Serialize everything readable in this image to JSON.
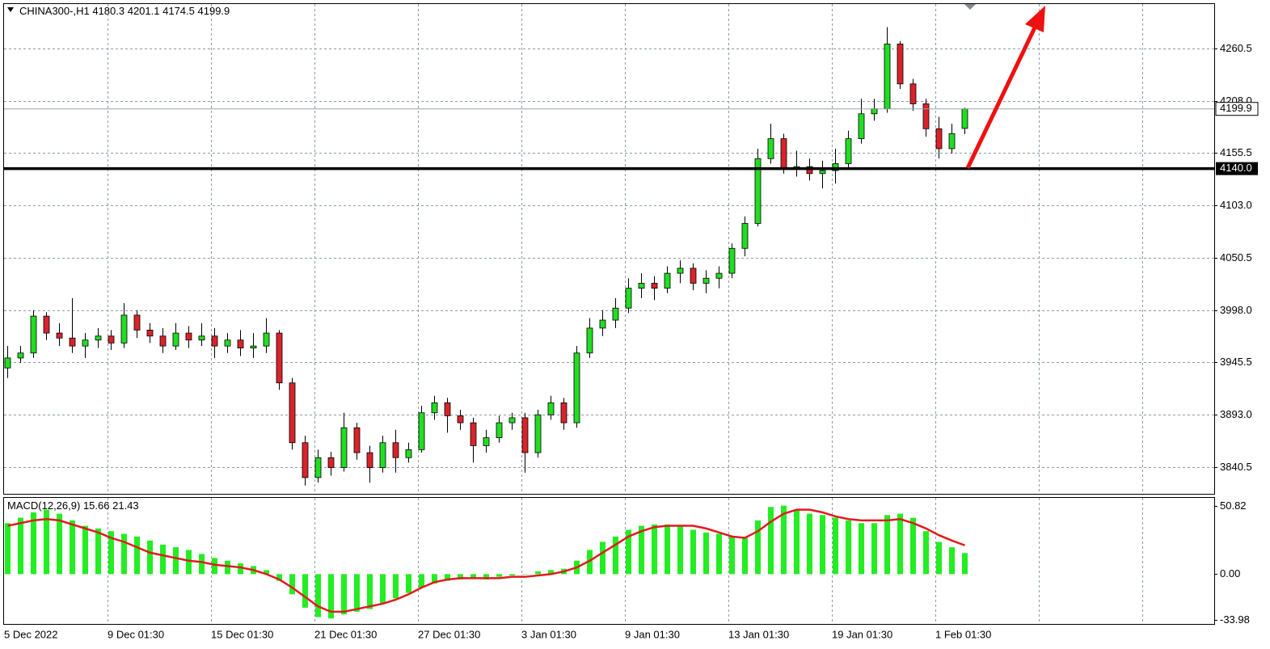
{
  "chart_data": [
    {
      "type": "candlestick",
      "title": "CHINA300-,H1",
      "open": [
        3940,
        3950,
        3955,
        3992,
        3975,
        3970,
        3962,
        3968,
        3972,
        3965,
        3993,
        3978,
        3972,
        3962,
        3975,
        3968,
        3972,
        3962,
        3968,
        3960,
        3962,
        3975,
        3925,
        3865,
        3830,
        3850,
        3840,
        3880,
        3855,
        3840,
        3865,
        3850,
        3858,
        3895,
        3905,
        3892,
        3885,
        3862,
        3870,
        3885,
        3890,
        3855,
        3893,
        3905,
        3885,
        3955,
        3980,
        3988,
        4000,
        4020,
        4025,
        4020,
        4035,
        4040,
        4025,
        4030,
        4035,
        4060,
        4085,
        4150,
        4170,
        4140,
        4142,
        4135,
        4138,
        4145,
        4170,
        4195,
        4200,
        4265,
        4225,
        4205,
        4180,
        4160,
        4180.3
      ],
      "high": [
        3962,
        3962,
        3998,
        3996,
        3985,
        4010,
        3975,
        3980,
        3978,
        4005,
        3998,
        3985,
        3980,
        3985,
        3982,
        3985,
        3980,
        3975,
        3978,
        3975,
        3990,
        3978,
        3930,
        3872,
        3858,
        3856,
        3895,
        3885,
        3862,
        3872,
        3878,
        3865,
        3902,
        3912,
        3910,
        3898,
        3890,
        3878,
        3892,
        3895,
        3895,
        3898,
        3912,
        3910,
        3962,
        3990,
        3998,
        4010,
        4030,
        4035,
        4032,
        4042,
        4048,
        4045,
        4038,
        4042,
        4065,
        4092,
        4160,
        4185,
        4175,
        4158,
        4150,
        4148,
        4160,
        4178,
        4210,
        4210,
        4282,
        4268,
        4230,
        4210,
        4192,
        4185,
        4201.1
      ],
      "low": [
        3930,
        3945,
        3950,
        3968,
        3962,
        3955,
        3950,
        3960,
        3958,
        3960,
        3970,
        3965,
        3955,
        3958,
        3960,
        3962,
        3950,
        3955,
        3952,
        3950,
        3955,
        3918,
        3858,
        3822,
        3825,
        3832,
        3836,
        3848,
        3825,
        3835,
        3835,
        3845,
        3855,
        3888,
        3875,
        3878,
        3845,
        3855,
        3865,
        3878,
        3835,
        3850,
        3888,
        3878,
        3880,
        3950,
        3972,
        3980,
        3995,
        4010,
        4008,
        4015,
        4025,
        4018,
        4015,
        4020,
        4030,
        4052,
        4082,
        4145,
        4135,
        4132,
        4128,
        4120,
        4125,
        4140,
        4165,
        4188,
        4196,
        4220,
        4198,
        4172,
        4150,
        4155,
        4174.5
      ],
      "close": [
        3950,
        3955,
        3992,
        3975,
        3970,
        3962,
        3968,
        3972,
        3965,
        3993,
        3978,
        3972,
        3962,
        3975,
        3968,
        3972,
        3962,
        3968,
        3960,
        3962,
        3975,
        3925,
        3865,
        3830,
        3850,
        3840,
        3880,
        3855,
        3840,
        3865,
        3850,
        3858,
        3895,
        3905,
        3892,
        3885,
        3862,
        3870,
        3885,
        3890,
        3855,
        3893,
        3905,
        3885,
        3955,
        3980,
        3988,
        4000,
        4020,
        4025,
        4020,
        4035,
        4040,
        4025,
        4030,
        4035,
        4060,
        4085,
        4150,
        4170,
        4140,
        4142,
        4135,
        4138,
        4145,
        4170,
        4195,
        4200,
        4265,
        4225,
        4205,
        4180,
        4160,
        4175,
        4199.9
      ],
      "up_color": "#22dd22",
      "down_color": "#d9232b",
      "ylim": [
        3812.9,
        4305.1
      ],
      "yticks": [
        4260.5,
        {
          "value": 4208,
          "label": "4208.0"
        },
        4155.5,
        {
          "value": 4103,
          "label": "4103.0"
        },
        4050.5,
        {
          "value": 3998,
          "label": "3998.0"
        },
        3945.5,
        {
          "value": 3893,
          "label": "3893.0"
        },
        3840.5
      ],
      "grid": true,
      "level": {
        "value": 4140,
        "label": "4140.0"
      },
      "xticks": [
        "5 Dec 2022",
        "9 Dec 01:30",
        "15 Dec 01:30",
        "21 Dec 01:30",
        "27 Dec 01:30",
        "3 Jan 01:30",
        "9 Jan 01:30",
        "13 Jan 01:30",
        "19 Jan 01:30",
        "1 Feb 01:30"
      ]
    },
    {
      "type": "macd",
      "title": "MACD(12,26,9)",
      "histogram": [
        38,
        42,
        46,
        48,
        45,
        40,
        36,
        34,
        32,
        30,
        28,
        25,
        22,
        20,
        18,
        15,
        12,
        10,
        8,
        6,
        3,
        -5,
        -15,
        -25,
        -32,
        -33,
        -30,
        -28,
        -26,
        -22,
        -18,
        -14,
        -10,
        -7,
        -5,
        -4,
        -3,
        -4,
        -2,
        -1,
        0,
        2,
        3,
        4,
        10,
        18,
        24,
        28,
        33,
        36,
        37,
        37,
        36,
        33,
        31,
        30,
        28,
        27,
        40,
        50,
        51,
        48,
        45,
        44,
        42,
        40,
        38,
        38,
        44,
        45,
        42,
        32,
        24,
        20,
        15.66
      ],
      "signal": [
        36,
        38,
        40,
        41,
        40,
        37,
        34,
        31,
        27,
        24,
        20,
        16,
        14,
        12,
        10,
        9,
        7,
        6,
        5,
        3,
        0,
        -4,
        -10,
        -17,
        -24,
        -28,
        -28,
        -26,
        -24,
        -22,
        -19,
        -15,
        -10,
        -6,
        -4,
        -3,
        -3,
        -3,
        -3,
        -2,
        -2,
        -1,
        0,
        2,
        5,
        10,
        16,
        22,
        28,
        32,
        35,
        36,
        36,
        36,
        34,
        31,
        28,
        27,
        32,
        39,
        45,
        48,
        48,
        46,
        43,
        41,
        40,
        40,
        40,
        41,
        38,
        34,
        29,
        25,
        21.43
      ],
      "histogram_color": "#22ee22",
      "signal_color": "#e31a1c",
      "ylim": [
        -37.1,
        56.8
      ],
      "yticks": [
        50.82,
        {
          "value": 0,
          "label": "0.00"
        },
        -33.98
      ]
    }
  ]
}
